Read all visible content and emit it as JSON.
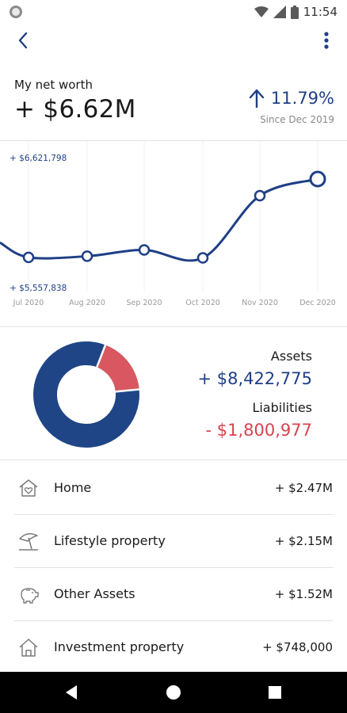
{
  "status_bar": {
    "time": "11:54",
    "icons": [
      "notification-icon",
      "wifi-icon",
      "signal-icon",
      "battery-icon"
    ]
  },
  "app_bar": {
    "icons": [
      "back-arrow-icon",
      "more-vertical-icon"
    ]
  },
  "net_worth": {
    "label": "My net worth",
    "value": "+ $6.62M",
    "change": "11.79%",
    "since": "Since Dec 2019"
  },
  "chart_data": {
    "type": "line",
    "x": [
      "Jul 2020",
      "Aug 2020",
      "Sep 2020",
      "Oct 2020",
      "Nov 2020",
      "Dec 2020"
    ],
    "series": [
      {
        "values": [
          5930000,
          5940000,
          5995000,
          5925000,
          6475000,
          6621798
        ]
      }
    ],
    "ylim": [
      5557838,
      6621798
    ],
    "y_max_label": "+ $6,621,798",
    "y_min_label": "+ $5,557,838",
    "grid": true,
    "color": "#1f3f86"
  },
  "summary": {
    "assets_label": "Assets",
    "assets_value": "+ $8,422,775",
    "liabilities_label": "Liabilities",
    "liabilities_value": "-  $1,800,977",
    "donut": {
      "assets": 8422775,
      "liabilities": 1800977,
      "assets_color": "#1f4586",
      "liabilities_color": "#d95761"
    }
  },
  "categories": [
    {
      "icon": "home-heart-icon",
      "label": "Home",
      "value": "+ $2.47M"
    },
    {
      "icon": "beach-umbrella-icon",
      "label": "Lifestyle property",
      "value": "+ $2.15M"
    },
    {
      "icon": "piggy-bank-icon",
      "label": "Other Assets",
      "value": "+ $1.52M"
    },
    {
      "icon": "house-icon",
      "label": "Investment property",
      "value": "+ $748,000"
    }
  ],
  "nav_bar": {
    "icons": [
      "back-triangle-icon",
      "home-circle-icon",
      "recents-square-icon"
    ]
  },
  "colors": {
    "brand_blue": "#1f3f86",
    "liability_red": "#d7434f"
  }
}
